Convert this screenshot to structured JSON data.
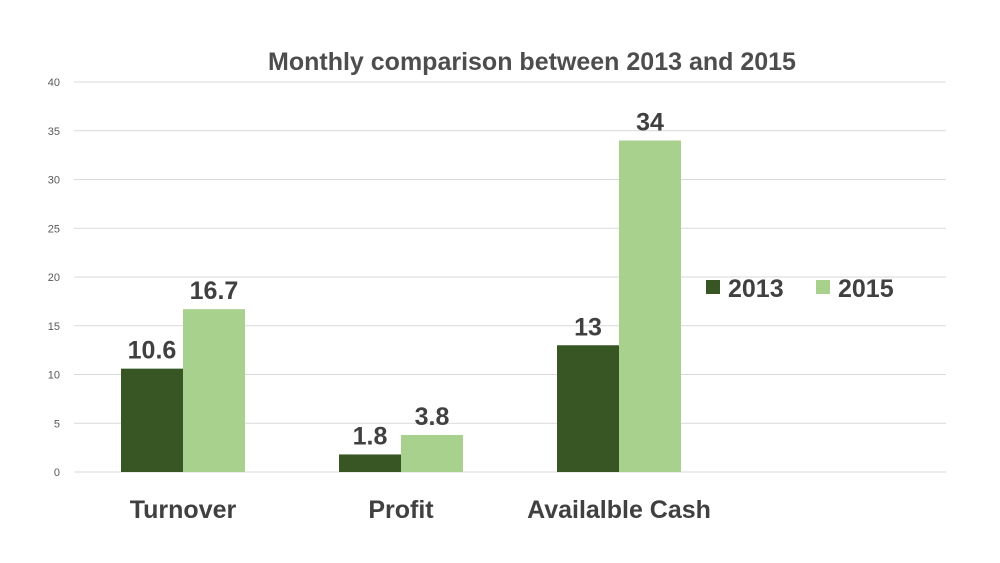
{
  "chart_data": {
    "type": "bar",
    "title": "Monthly comparison between 2013 and 2015",
    "categories": [
      "Turnover",
      "Profit",
      "Availalble Cash"
    ],
    "series": [
      {
        "name": "2013",
        "values": [
          10.6,
          1.8,
          13
        ],
        "labels": [
          "10.6",
          "1.8",
          "13"
        ],
        "color": "#375623"
      },
      {
        "name": "2015",
        "values": [
          16.7,
          3.8,
          34
        ],
        "labels": [
          "16.7",
          "3.8",
          "34"
        ],
        "color": "#a9d18e"
      }
    ],
    "yticks": [
      "0",
      "5",
      "10",
      "15",
      "20",
      "25",
      "30",
      "35",
      "40"
    ],
    "ylim": [
      0,
      40
    ],
    "grid": true,
    "legend": "right"
  }
}
